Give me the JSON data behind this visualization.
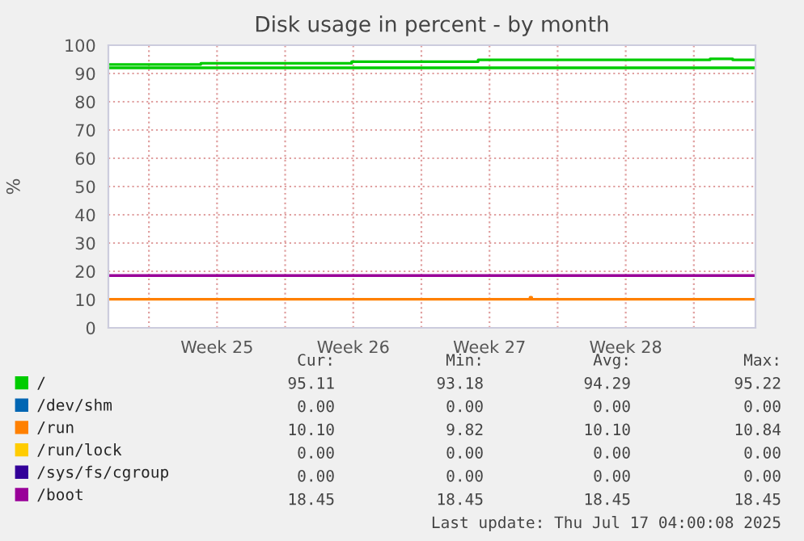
{
  "chart_data": {
    "type": "step",
    "title": "Disk usage in percent - by month",
    "ylabel": "%",
    "xlim": [
      "2025-06-13T22:00",
      "2025-07-17T04:00"
    ],
    "xticks": [
      {
        "value": "2025-06-16",
        "label": null
      },
      {
        "value": "2025-06-19T12:00",
        "label": "Week 25"
      },
      {
        "value": "2025-06-23",
        "label": null
      },
      {
        "value": "2025-06-26T12:00",
        "label": "Week 26"
      },
      {
        "value": "2025-06-30",
        "label": null
      },
      {
        "value": "2025-07-03T12:00",
        "label": "Week 27"
      },
      {
        "value": "2025-07-07",
        "label": null
      },
      {
        "value": "2025-07-10T12:00",
        "label": "Week 28"
      },
      {
        "value": "2025-07-14",
        "label": null
      }
    ],
    "ylim": [
      0,
      100
    ],
    "yticks": [
      0,
      10,
      20,
      30,
      40,
      50,
      60,
      70,
      80,
      90,
      100
    ],
    "grid": true,
    "legend": "bottom left",
    "series": [
      {
        "name": "/",
        "color": "#00cc00",
        "x": [
          "2025-06-13T22:00",
          "2025-06-18T16:00",
          "2025-06-26T10:00",
          "2025-07-02T22:00",
          "2025-07-14T20:00",
          "2025-07-16T00:00",
          "2025-07-17T04:00"
        ],
        "values": [
          93.2,
          93.6,
          94.2,
          94.8,
          95.2,
          94.8,
          94.8
        ]
      },
      {
        "name": "/dev/shm",
        "color": "#0066b3"
      },
      {
        "name": "/run",
        "color": "#ff8000",
        "x": [
          "2025-06-13T22:00",
          "2025-07-05T12:00",
          "2025-07-05T14:00",
          "2025-07-05T16:00",
          "2025-07-17T04:00"
        ],
        "values": [
          10.1,
          10.1,
          10.8,
          10.1,
          10.1
        ]
      },
      {
        "name": "/run/lock",
        "color": "#ffcc00"
      },
      {
        "name": "/sys/fs/cgroup",
        "color": "#330099"
      },
      {
        "name": "/boot",
        "color": "#990099",
        "x": [
          "2025-06-13T22:00",
          "2025-07-17T04:00"
        ],
        "values": [
          18.5,
          18.5
        ]
      }
    ],
    "ref_lines": [
      {
        "axis": "y",
        "value": 92,
        "label": null,
        "color": "#00cc00"
      }
    ],
    "annotations": [
      "Cur:",
      "Min:",
      "Avg:",
      "Max:",
      "95.11",
      "93.18",
      "94.29",
      "95.22",
      "0.00",
      "0.00",
      "0.00",
      "0.00",
      "10.10",
      "9.82",
      "10.10",
      "10.84",
      "0.00",
      "0.00",
      "0.00",
      "0.00",
      "0.00",
      "0.00",
      "0.00",
      "0.00",
      "18.45",
      "18.45",
      "18.45",
      "18.45",
      "Last update: Thu Jul 17 04:00:08 2025"
    ]
  }
}
